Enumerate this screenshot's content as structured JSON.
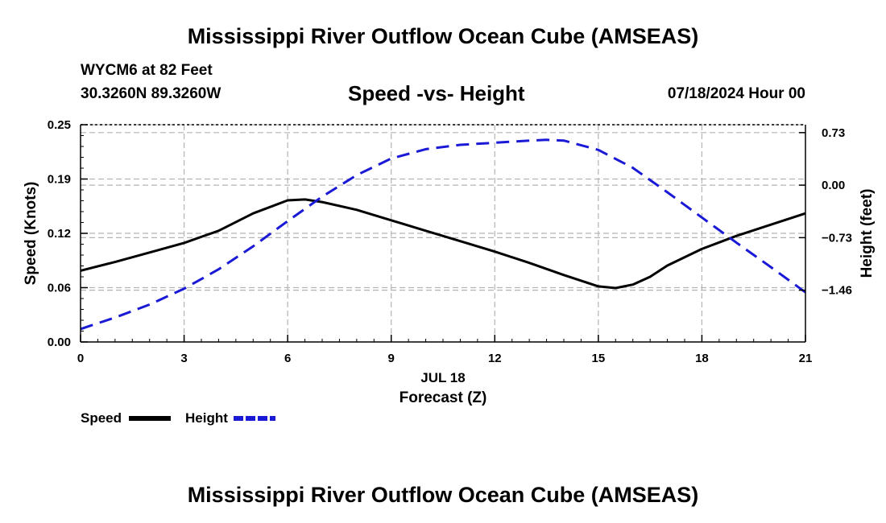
{
  "header": {
    "title": "Mississippi River Outflow Ocean Cube (AMSEAS)",
    "station": "WYCM6 at 82 Feet",
    "coords": "30.3260N  89.3260W",
    "datetime": "07/18/2024 Hour 00"
  },
  "footer": {
    "title": "Mississippi River Outflow Ocean Cube (AMSEAS)"
  },
  "legend": {
    "speed_label": "Speed",
    "height_label": "Height"
  },
  "colors": {
    "speed": "#000000",
    "height": "#1a1ad6",
    "grid": "#b4b4b4"
  },
  "chart_data": {
    "type": "line",
    "title": "Speed -vs- Height",
    "xlabel": "Forecast (Z)",
    "xsublabel": "JUL 18",
    "ylabel": "Speed (Knots)",
    "y2label": "Height (feet)",
    "xlim": [
      0,
      21
    ],
    "ylim": [
      0,
      0.25
    ],
    "y2lim": [
      -2.18,
      0.84
    ],
    "xticks": [
      0,
      3,
      6,
      9,
      12,
      15,
      18,
      21
    ],
    "xtick_labels": [
      "0",
      "3",
      "6",
      "9",
      "12",
      "15",
      "18",
      "21"
    ],
    "yticks": [
      0,
      0.0625,
      0.125,
      0.1875,
      0.25
    ],
    "ytick_labels": [
      "0.00",
      "0.06",
      "0.12",
      "0.19",
      "0.25"
    ],
    "y2ticks": [
      0.73,
      0,
      -0.73,
      -1.46
    ],
    "y2tick_labels": [
      "0.73",
      "0.00",
      "−0.73",
      "−1.46"
    ],
    "grid": true,
    "series": [
      {
        "name": "Speed",
        "axis": "left",
        "style": "solid",
        "x": [
          0,
          1,
          2,
          3,
          4,
          5,
          6,
          6.5,
          7,
          8,
          9,
          10,
          11,
          12,
          13,
          14,
          15,
          15.5,
          16,
          16.5,
          17,
          18,
          19,
          20,
          21
        ],
        "y": [
          0.082,
          0.092,
          0.103,
          0.114,
          0.128,
          0.148,
          0.163,
          0.164,
          0.161,
          0.152,
          0.14,
          0.128,
          0.116,
          0.104,
          0.091,
          0.077,
          0.064,
          0.062,
          0.066,
          0.075,
          0.088,
          0.107,
          0.122,
          0.135,
          0.148
        ]
      },
      {
        "name": "Height",
        "axis": "right",
        "style": "dashed",
        "x": [
          0,
          1,
          2,
          3,
          4,
          5,
          6,
          7,
          8,
          9,
          10,
          11,
          12,
          13,
          13.5,
          14,
          15,
          16,
          17,
          18,
          19,
          20,
          21
        ],
        "y": [
          -2.0,
          -1.84,
          -1.66,
          -1.44,
          -1.17,
          -0.85,
          -0.5,
          -0.16,
          0.14,
          0.37,
          0.5,
          0.56,
          0.59,
          0.62,
          0.63,
          0.62,
          0.49,
          0.24,
          -0.1,
          -0.45,
          -0.8,
          -1.14,
          -1.49
        ]
      }
    ]
  }
}
